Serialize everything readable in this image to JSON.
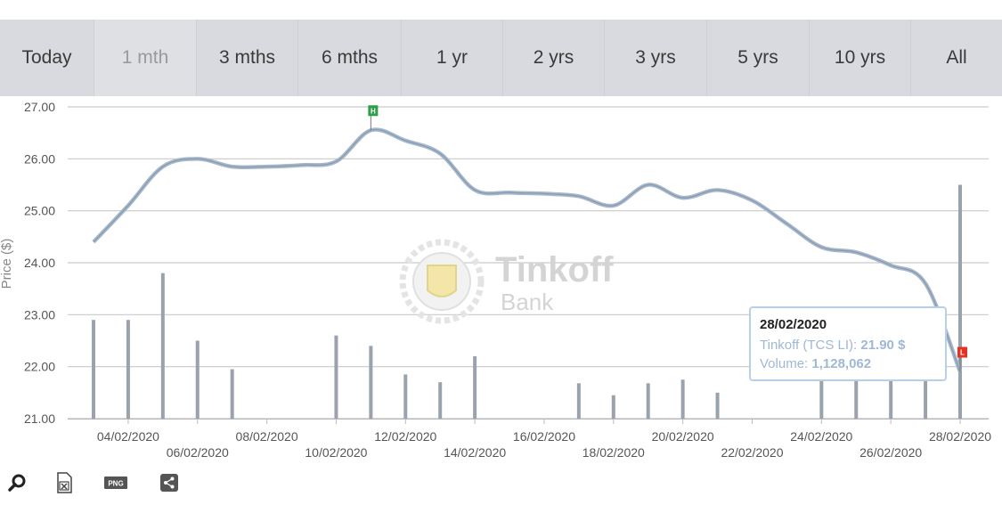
{
  "tabs": [
    {
      "label": "Today",
      "disabled": false
    },
    {
      "label": "1 mth",
      "disabled": true
    },
    {
      "label": "3 mths",
      "disabled": false
    },
    {
      "label": "6 mths",
      "disabled": false
    },
    {
      "label": "1 yr",
      "disabled": false
    },
    {
      "label": "2 yrs",
      "disabled": false
    },
    {
      "label": "3 yrs",
      "disabled": false
    },
    {
      "label": "5 yrs",
      "disabled": false
    },
    {
      "label": "10 yrs",
      "disabled": false
    },
    {
      "label": "All",
      "disabled": false
    }
  ],
  "watermark": {
    "line1": "Tinkoff",
    "line2": "Bank"
  },
  "tooltip": {
    "date": "28/02/2020",
    "price_label": "Tinkoff (TCS LI): ",
    "price_value": "21.90 $",
    "volume_label": "Volume: ",
    "volume_value": "1,128,062"
  },
  "toolbar": {
    "icons": [
      "search-icon",
      "excel-export-icon",
      "png-export-icon",
      "share-icon"
    ],
    "png_label": "PNG"
  },
  "chart_data": {
    "type": "line",
    "ylabel": "Price ($)",
    "ylim": [
      21.0,
      27.0
    ],
    "yticks": [
      "27.00",
      "26.00",
      "25.00",
      "24.00",
      "23.00",
      "22.00",
      "21.00"
    ],
    "xlabels_upper": [
      "04/02/2020",
      "08/02/2020",
      "12/02/2020",
      "16/02/2020",
      "20/02/2020",
      "24/02/2020",
      "28/02/2020"
    ],
    "xlabels_lower": [
      "06/02/2020",
      "10/02/2020",
      "14/02/2020",
      "18/02/2020",
      "22/02/2020",
      "26/02/2020"
    ],
    "grid": true,
    "price_series": {
      "name": "Tinkoff (TCS LI)",
      "x": [
        "03/02/2020",
        "04/02/2020",
        "05/02/2020",
        "06/02/2020",
        "07/02/2020",
        "08/02/2020",
        "09/02/2020",
        "10/02/2020",
        "11/02/2020",
        "12/02/2020",
        "13/02/2020",
        "14/02/2020",
        "15/02/2020",
        "16/02/2020",
        "17/02/2020",
        "18/02/2020",
        "19/02/2020",
        "20/02/2020",
        "21/02/2020",
        "22/02/2020",
        "23/02/2020",
        "24/02/2020",
        "25/02/2020",
        "26/02/2020",
        "27/02/2020",
        "28/02/2020"
      ],
      "values": [
        24.4,
        25.1,
        25.85,
        26.0,
        25.85,
        25.85,
        25.88,
        25.95,
        26.55,
        26.35,
        26.1,
        25.4,
        25.35,
        25.33,
        25.28,
        25.1,
        25.5,
        25.25,
        25.4,
        25.2,
        24.75,
        24.3,
        24.2,
        23.95,
        23.6,
        21.9
      ]
    },
    "volume_bars": {
      "dates": [
        "03/02/2020",
        "04/02/2020",
        "05/02/2020",
        "06/02/2020",
        "07/02/2020",
        "10/02/2020",
        "11/02/2020",
        "12/02/2020",
        "13/02/2020",
        "14/02/2020",
        "17/02/2020",
        "18/02/2020",
        "19/02/2020",
        "20/02/2020",
        "21/02/2020",
        "24/02/2020",
        "25/02/2020",
        "26/02/2020",
        "27/02/2020",
        "28/02/2020"
      ],
      "heights_price_units": [
        22.9,
        22.9,
        23.8,
        22.5,
        21.95,
        22.6,
        22.4,
        21.85,
        21.7,
        22.2,
        21.68,
        21.45,
        21.68,
        21.75,
        21.5,
        22.0,
        22.0,
        22.8,
        22.3,
        25.5
      ]
    },
    "markers": [
      {
        "label": "H",
        "date": "11/02/2020",
        "value": 26.55,
        "color": "#2e9e4a"
      },
      {
        "label": "L",
        "date": "28/02/2020",
        "value": 21.9,
        "color": "#e53222"
      }
    ],
    "colors": {
      "line": "#a7b8cc",
      "line_core": "#8799ad",
      "bar": "#9aa3ad",
      "grid": "#c9c9c9"
    }
  }
}
